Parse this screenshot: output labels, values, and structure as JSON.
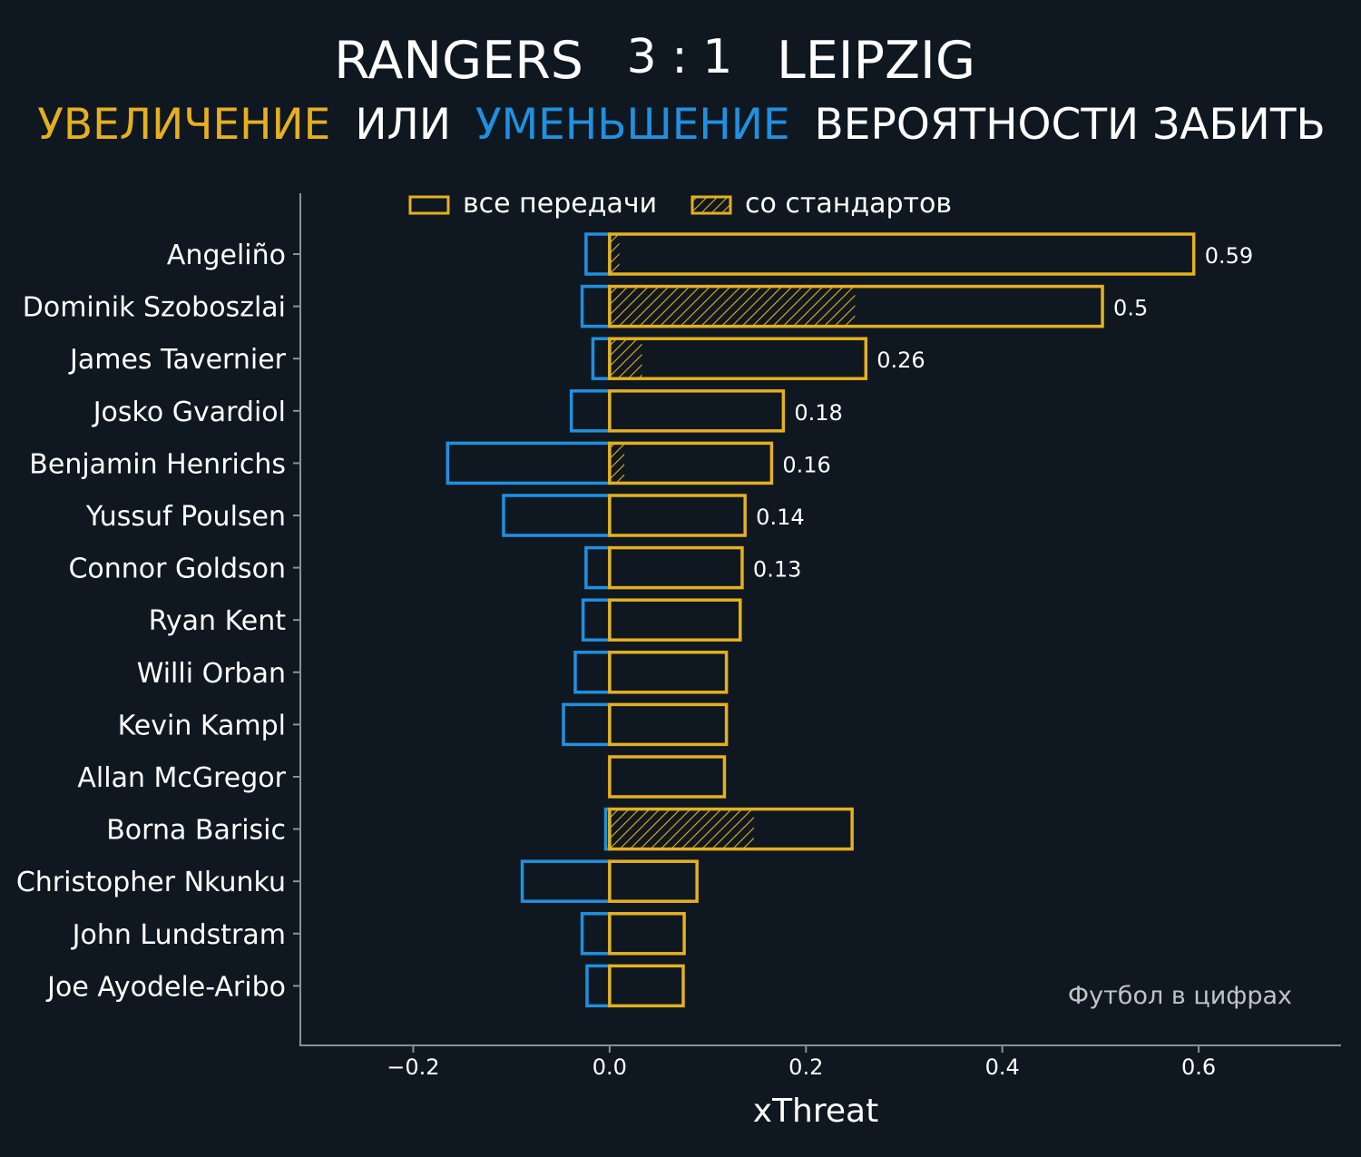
{
  "colors": {
    "background": "#0f1820",
    "positive": "#e5b020",
    "negative": "#2090e0",
    "text": "#ffffff",
    "axis": "#8a9299",
    "credit": "#bfc4c8"
  },
  "header": {
    "home_team": "RANGERS",
    "score": "3 : 1",
    "away_team": "LEIPZIG",
    "subtitle_increase": "УВЕЛИЧЕНИЕ",
    "subtitle_or": "ИЛИ",
    "subtitle_decrease": "УМЕНЬШЕНИЕ",
    "subtitle_rest": "ВЕРОЯТНОСТИ ЗАБИТЬ"
  },
  "legend": {
    "all_passes": "все передачи",
    "set_pieces": "со стандартов"
  },
  "credit": "Футбол в цифрах",
  "chart_data": {
    "type": "bar",
    "orientation": "horizontal",
    "xlabel": "xThreat",
    "xlim": [
      -0.315,
      0.745
    ],
    "xticks": [
      -0.2,
      0.0,
      0.2,
      0.4,
      0.6
    ],
    "xtick_labels": [
      "−0.2",
      "0.0",
      "0.2",
      "0.4",
      "0.6"
    ],
    "categories": [
      "Angeliño",
      "Dominik Szoboszlai",
      "James Tavernier",
      "Josko Gvardiol",
      "Benjamin Henrichs",
      "Yussuf Poulsen",
      "Connor Goldson",
      "Ryan Kent",
      "Willi Orban",
      "Kevin Kampl",
      "Allan McGregor",
      "Borna Barisic",
      "Christopher Nkunku",
      "John Lundstram",
      "Joe Ayodele-Aribo"
    ],
    "series": [
      {
        "name": "все передачи (increase)",
        "values": [
          0.595,
          0.502,
          0.261,
          0.177,
          0.165,
          0.138,
          0.135,
          0.133,
          0.119,
          0.119,
          0.117,
          0.247,
          0.089,
          0.076,
          0.075
        ]
      },
      {
        "name": "все передачи (decrease)",
        "values": [
          -0.024,
          -0.028,
          -0.017,
          -0.039,
          -0.165,
          -0.108,
          -0.024,
          -0.027,
          -0.035,
          -0.047,
          0.0,
          -0.004,
          -0.089,
          -0.028,
          -0.023
        ]
      },
      {
        "name": "со стандартов",
        "values": [
          0.01,
          0.25,
          0.033,
          0.0,
          0.015,
          0.0,
          0.0,
          0.0,
          0.0,
          0.0,
          0.0,
          0.147,
          0.0,
          0.0,
          0.0
        ]
      }
    ],
    "value_labels": [
      "0.59",
      "0.5",
      "0.26",
      "0.18",
      "0.16",
      "0.14",
      "0.13",
      "",
      "",
      "",
      "",
      "",
      "",
      "",
      ""
    ]
  }
}
